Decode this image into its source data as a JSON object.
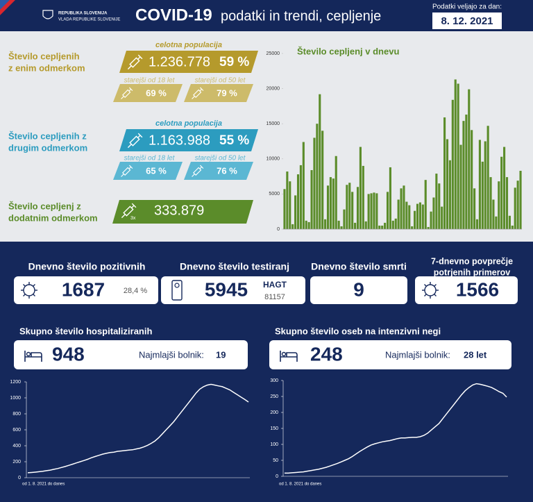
{
  "header": {
    "logo": [
      "REPUBLIKA SLOVENIJA",
      "VLADA REPUBLIKE SLOVENIJE"
    ],
    "title": "COVID-19",
    "subtitle": "podatki in trendi, cepljenje",
    "date_label": "Podatki veljajo za dan:",
    "date": "8. 12. 2021"
  },
  "vaccination": [
    {
      "label": [
        "Število cepljenih",
        "z enim odmerkom"
      ],
      "header": "celotna populacija",
      "value": "1.236.778",
      "percent": "59 %",
      "groups": [
        {
          "label": "starejši od 18 let",
          "percent": "69 %"
        },
        {
          "label": "starejši od 50 let",
          "percent": "79 %"
        }
      ]
    },
    {
      "label": [
        "Število cepljenih z",
        "drugim odmerkom"
      ],
      "header": "celotna populacija",
      "value": "1.163.988",
      "percent": "55 %",
      "groups": [
        {
          "label": "starejši od 18 let",
          "percent": "65 %"
        },
        {
          "label": "starejši od 50 let",
          "percent": "76 %"
        }
      ]
    },
    {
      "label": [
        "Število cepljenj z",
        "dodatnim odmerkom"
      ],
      "icon_label": "3x",
      "value": "333.879"
    }
  ],
  "daily": [
    {
      "title": [
        "Dnevno število pozitivnih"
      ],
      "value": "1687",
      "note": "28,4 %"
    },
    {
      "title": [
        "Dnevno število testiranj"
      ],
      "value": "5945",
      "note_title": "HAGT",
      "note": "81157"
    },
    {
      "title": [
        "Dnevno število smrti"
      ],
      "value": "9"
    },
    {
      "title": [
        "7-dnevno povprečje",
        "potrjenih primerov"
      ],
      "value": "1566"
    }
  ],
  "chart_data": [
    {
      "type": "bar",
      "title": "Število cepljenj v dnevu",
      "color": "#5b8c2a",
      "grid": false,
      "ylim": [
        0,
        25000
      ],
      "yticks": [
        0,
        5000,
        10000,
        15000,
        20000,
        25000
      ],
      "values": [
        5700,
        8200,
        6800,
        700,
        4800,
        7800,
        9100,
        12400,
        1200,
        1000,
        8400,
        13000,
        15000,
        19200,
        14000,
        1400,
        6200,
        7400,
        7200,
        10400,
        1200,
        400,
        2800,
        6300,
        6600,
        5300,
        900,
        6000,
        11700,
        9000,
        1100,
        5000,
        5100,
        5200,
        5100,
        500,
        500,
        900,
        5300,
        8800,
        1200,
        1500,
        4200,
        5800,
        6200,
        3900,
        3400,
        400,
        2600,
        3600,
        3800,
        3500,
        7000,
        300,
        2500,
        4500,
        7900,
        6500,
        3200,
        15900,
        12800,
        9800,
        18400,
        21300,
        20700,
        12000,
        15400,
        16300,
        19900,
        14100,
        5800,
        1400,
        12700,
        9600,
        12500,
        14700,
        7400,
        4200,
        1800,
        6800,
        10300,
        11700,
        7400,
        1900,
        500,
        5900,
        6900,
        8300
      ]
    },
    {
      "type": "line",
      "title": "Skupno število hospitaliziranih",
      "x_label": "od 1. 8. 2021 do danes",
      "color": "#ffffff",
      "summary": {
        "value": 948,
        "label": "Najmlajši bolnik:",
        "youngest": "19"
      },
      "ylim": [
        0,
        1200
      ],
      "yticks": [
        0,
        200,
        400,
        600,
        800,
        1000,
        1200
      ],
      "values": [
        62,
        65,
        70,
        75,
        80,
        88,
        95,
        105,
        115,
        128,
        140,
        155,
        170,
        185,
        200,
        215,
        230,
        250,
        265,
        280,
        295,
        305,
        315,
        320,
        330,
        335,
        340,
        345,
        350,
        360,
        370,
        385,
        405,
        430,
        460,
        500,
        550,
        600,
        650,
        700,
        760,
        820,
        880,
        940,
        1000,
        1060,
        1110,
        1140,
        1160,
        1170,
        1160,
        1150,
        1140,
        1120,
        1100,
        1070,
        1040,
        1010,
        980,
        948
      ]
    },
    {
      "type": "line",
      "title": "Skupno število oseb na intenzivni negi",
      "x_label": "od 1. 8. 2021 do danes",
      "color": "#ffffff",
      "summary": {
        "value": 248,
        "label": "Najmlajši bolnik:",
        "youngest": "28 let"
      },
      "ylim": [
        0,
        300
      ],
      "yticks": [
        0,
        50,
        100,
        150,
        200,
        250,
        300
      ],
      "values": [
        10,
        10,
        11,
        12,
        13,
        14,
        16,
        18,
        20,
        22,
        25,
        28,
        32,
        36,
        40,
        45,
        50,
        55,
        62,
        70,
        78,
        85,
        92,
        98,
        102,
        105,
        108,
        110,
        112,
        115,
        118,
        120,
        120,
        121,
        122,
        122,
        124,
        128,
        135,
        145,
        155,
        165,
        180,
        195,
        210,
        225,
        240,
        255,
        268,
        278,
        286,
        290,
        288,
        285,
        282,
        278,
        272,
        265,
        260,
        248
      ]
    }
  ]
}
